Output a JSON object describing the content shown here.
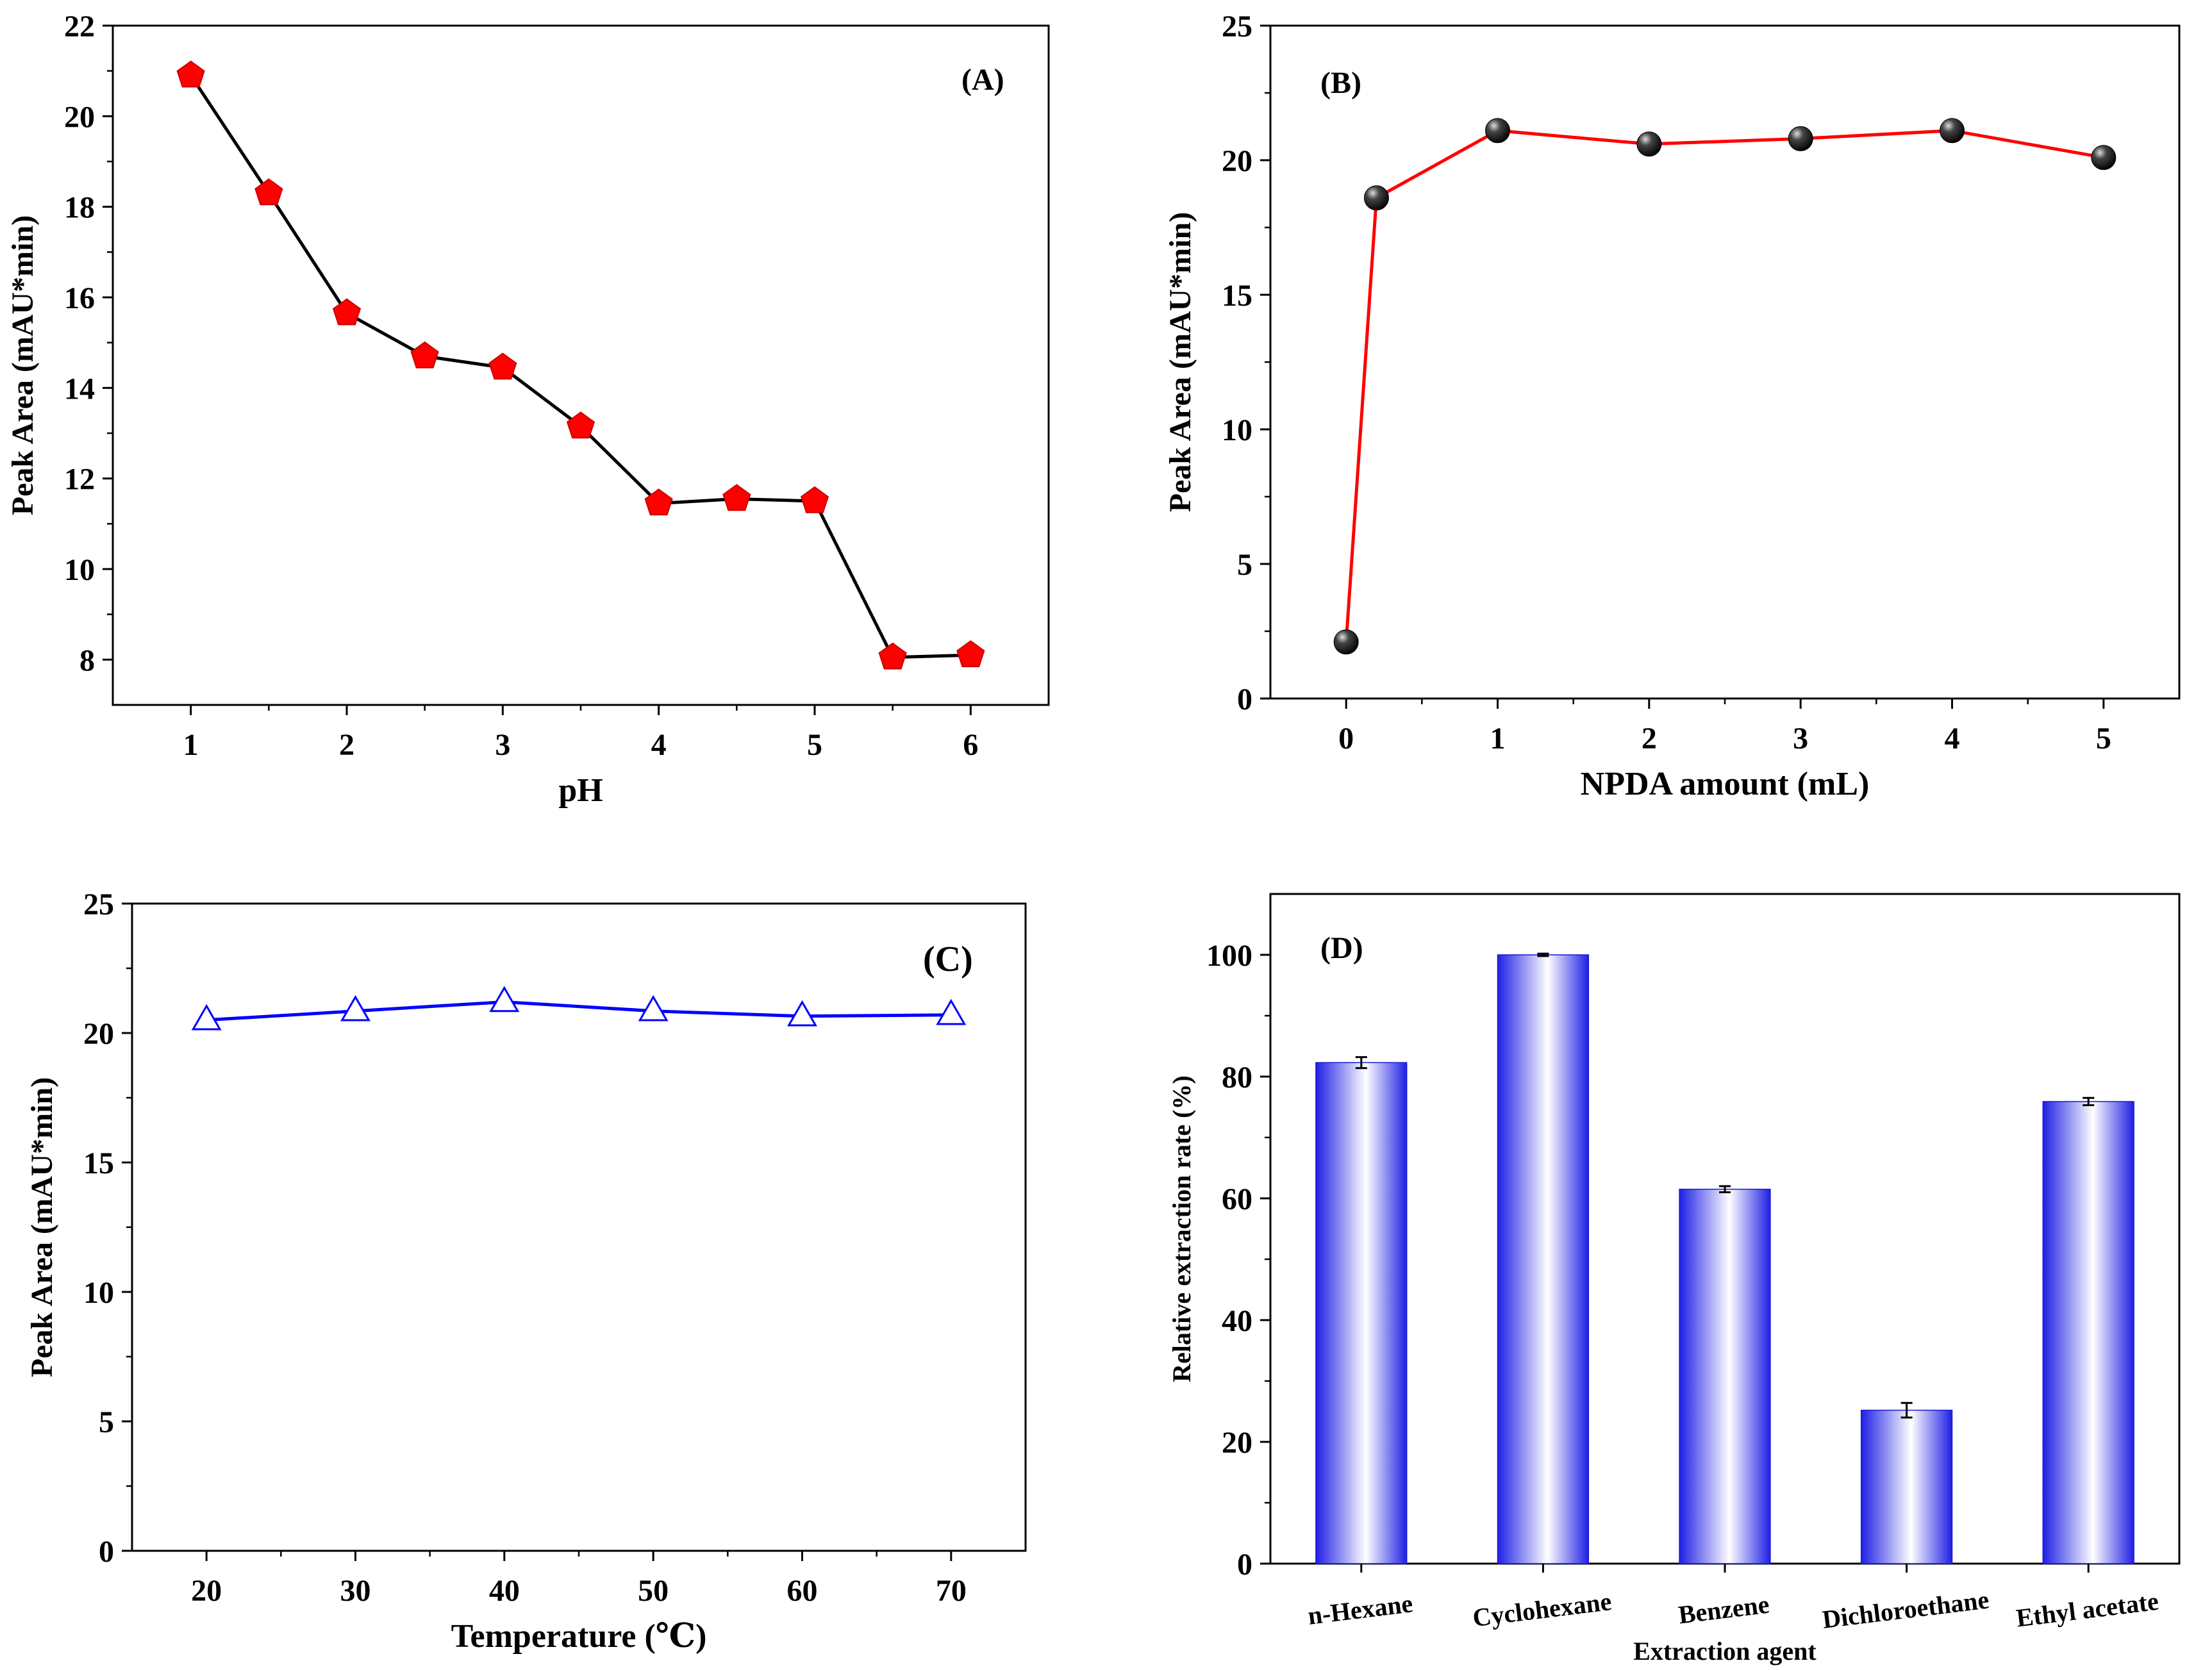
{
  "chart_data": [
    {
      "id": "A",
      "type": "line",
      "panel_label": "(A)",
      "xlabel": "pH",
      "ylabel": "Peak Area (mAU*min)",
      "xlim": [
        0.5,
        6.5
      ],
      "ylim": [
        7,
        22
      ],
      "xticks": [
        1,
        2,
        3,
        4,
        5,
        6
      ],
      "yticks": [
        8,
        10,
        12,
        14,
        16,
        18,
        20,
        22
      ],
      "x": [
        1,
        1.5,
        2,
        2.5,
        3,
        3.5,
        4,
        4.5,
        5,
        5.5,
        6
      ],
      "y": [
        20.9,
        18.3,
        15.65,
        14.7,
        14.45,
        13.15,
        11.45,
        11.55,
        11.5,
        8.05,
        8.1
      ],
      "line_color": "#000000",
      "marker_color": "#ff0000",
      "marker": "pentagon"
    },
    {
      "id": "B",
      "type": "line",
      "panel_label": "(B)",
      "xlabel": "NPDA amount (mL)",
      "ylabel": "Peak Area (mAU*min)",
      "xlim": [
        -0.5,
        5.5
      ],
      "ylim": [
        0,
        25
      ],
      "xticks": [
        0,
        1,
        2,
        3,
        4,
        5
      ],
      "yticks": [
        0,
        5,
        10,
        15,
        20,
        25
      ],
      "x": [
        0,
        0.2,
        1,
        2,
        3,
        4,
        5
      ],
      "y": [
        2.1,
        18.6,
        21.1,
        20.6,
        20.8,
        21.1,
        20.1
      ],
      "line_color": "#ff0000",
      "marker_color": "#000000",
      "marker": "sphere"
    },
    {
      "id": "C",
      "type": "line",
      "panel_label": "(C)",
      "xlabel": "Temperature (℃)",
      "ylabel": "Peak Area (mAU*min)",
      "xlim": [
        15,
        75
      ],
      "ylim": [
        0,
        25
      ],
      "xticks": [
        20,
        30,
        40,
        50,
        60,
        70
      ],
      "yticks": [
        0,
        5,
        10,
        15,
        20,
        25
      ],
      "x": [
        20,
        30,
        40,
        50,
        60,
        70
      ],
      "y": [
        20.5,
        20.85,
        21.2,
        20.85,
        20.65,
        20.7
      ],
      "line_color": "#0000ff",
      "marker_color": "#0000ff",
      "marker": "open-triangle"
    },
    {
      "id": "D",
      "type": "bar",
      "panel_label": "(D)",
      "xlabel": "Extraction agent",
      "ylabel": "Relative extraction rate (%)",
      "ylim": [
        0,
        110
      ],
      "yticks": [
        0,
        20,
        40,
        60,
        80,
        100
      ],
      "categories": [
        "n-Hexane",
        "Cyclohexane",
        "Benzene",
        "Dichloroethane",
        "Ethyl acetate"
      ],
      "values": [
        82.3,
        100,
        61.5,
        25.2,
        75.9
      ],
      "errors": [
        0.9,
        0.2,
        0.5,
        1.2,
        0.6
      ],
      "bar_color": "#2222ee"
    }
  ]
}
